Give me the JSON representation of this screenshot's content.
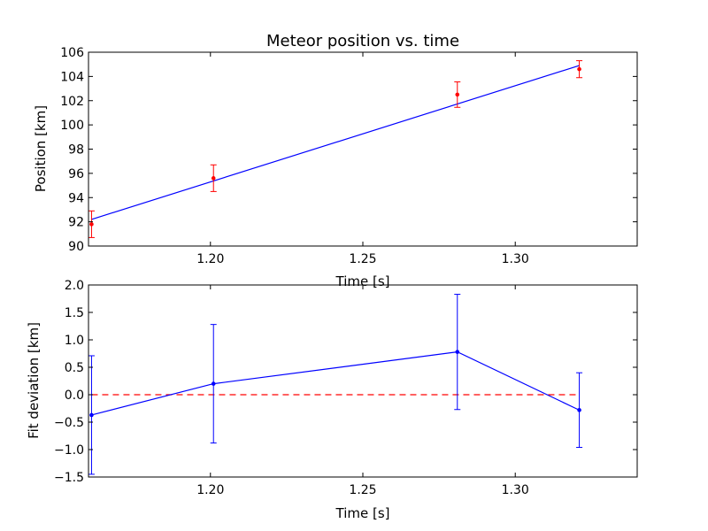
{
  "chart_data": [
    {
      "type": "line",
      "title": "Meteor position vs. time",
      "xlabel": "Time [s]",
      "ylabel": "Position [km]",
      "xlim": [
        1.16,
        1.34
      ],
      "ylim": [
        90,
        106
      ],
      "xticks": [
        "1.20",
        "1.25",
        "1.30"
      ],
      "xtick_values": [
        1.2,
        1.25,
        1.3
      ],
      "yticks": [
        "90",
        "92",
        "94",
        "96",
        "98",
        "100",
        "102",
        "104",
        "106"
      ],
      "ytick_values": [
        90,
        92,
        94,
        96,
        98,
        100,
        102,
        104,
        106
      ],
      "grid": false,
      "fit_line": {
        "color": "#0000ff",
        "x": [
          1.161,
          1.321
        ],
        "y": [
          92.2,
          104.9
        ]
      },
      "measurements": {
        "color": "#ff0000",
        "x": [
          1.161,
          1.201,
          1.281,
          1.321
        ],
        "y": [
          91.8,
          95.6,
          102.5,
          104.6
        ],
        "yerr": [
          1.1,
          1.1,
          1.05,
          0.7
        ]
      }
    },
    {
      "type": "line",
      "title": "",
      "xlabel": "Time [s]",
      "ylabel": "Fit deviation [km]",
      "xlim": [
        1.16,
        1.34
      ],
      "ylim": [
        -1.5,
        2.0
      ],
      "xticks": [
        "1.20",
        "1.25",
        "1.30"
      ],
      "xtick_values": [
        1.2,
        1.25,
        1.3
      ],
      "yticks": [
        "−1.5",
        "−1.0",
        "−0.5",
        "0.0",
        "0.5",
        "1.0",
        "1.5",
        "2.0"
      ],
      "ytick_values": [
        -1.5,
        -1.0,
        -0.5,
        0.0,
        0.5,
        1.0,
        1.5,
        2.0
      ],
      "grid": false,
      "zero_line": {
        "color": "#ff0000",
        "style": "dashed",
        "x": [
          1.161,
          1.321
        ],
        "y": 0.0
      },
      "residuals": {
        "color": "#0000ff",
        "x": [
          1.161,
          1.201,
          1.281,
          1.321
        ],
        "y": [
          -0.37,
          0.2,
          0.78,
          -0.28
        ],
        "yerr": [
          1.08,
          1.08,
          1.05,
          0.68
        ]
      }
    }
  ]
}
